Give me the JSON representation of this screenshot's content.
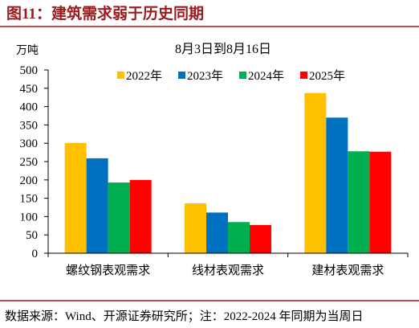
{
  "figure": {
    "title": "图11：建筑需求弱于历史同期",
    "source_note": "数据来源：Wind、开源证券研究所；注：2022-2024 年同期为当周日"
  },
  "chart_data": {
    "type": "bar",
    "title": "8月3日到8月16日",
    "ylabel": "万吨",
    "categories": [
      "螺纹钢表观需求",
      "线材表观需求",
      "建材表观需求"
    ],
    "series": [
      {
        "name": "2022年",
        "color": "#FFC000",
        "values": [
          301,
          136,
          437
        ]
      },
      {
        "name": "2023年",
        "color": "#0070C0",
        "values": [
          259,
          111,
          370
        ]
      },
      {
        "name": "2024年",
        "color": "#00B050",
        "values": [
          193,
          85,
          278
        ]
      },
      {
        "name": "2025年",
        "color": "#FF0000",
        "values": [
          200,
          77,
          277
        ]
      }
    ],
    "ylim": [
      0,
      500
    ],
    "yticks": [
      0,
      50,
      100,
      150,
      200,
      250,
      300,
      350,
      400,
      450,
      500
    ],
    "grid": false,
    "legend": "top"
  }
}
